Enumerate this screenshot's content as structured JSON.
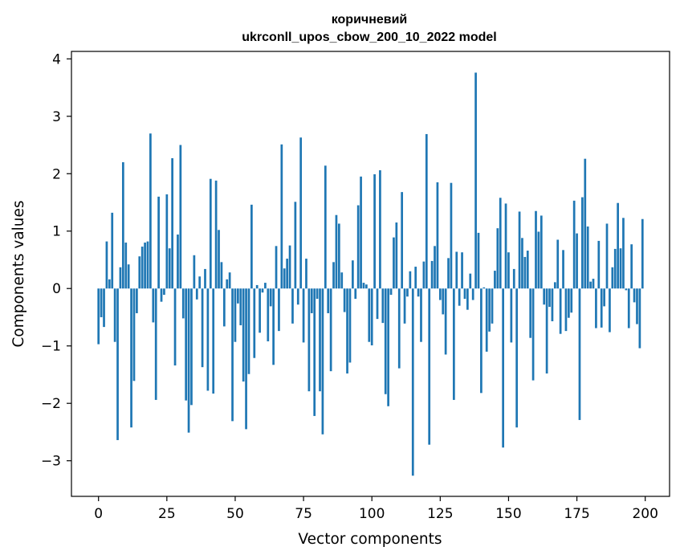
{
  "chart_data": {
    "type": "bar",
    "title_line1": "коричневий",
    "title_line2": "ukrconll_upos_cbow_200_10_2022 model",
    "xlabel": "Vector components",
    "ylabel": "Components values",
    "bar_color": "#1f77b4",
    "xlim": [
      -9.9,
      208.9
    ],
    "ylim": [
      -3.62,
      4.13
    ],
    "x_ticks": [
      0,
      25,
      50,
      75,
      100,
      125,
      150,
      175,
      200
    ],
    "y_ticks": [
      4,
      3,
      2,
      1,
      0,
      -1,
      -2,
      -3
    ],
    "y_tick_labels": [
      "4",
      "3",
      "2",
      "1",
      "0",
      "−1",
      "−2",
      "−3"
    ],
    "values": [
      -0.97,
      -0.5,
      -0.67,
      0.82,
      0.16,
      1.32,
      -0.93,
      -2.64,
      0.37,
      2.2,
      0.8,
      0.42,
      -2.42,
      -1.61,
      -0.43,
      0.56,
      0.73,
      0.8,
      0.82,
      2.7,
      -0.59,
      -1.94,
      1.6,
      -0.23,
      -0.11,
      1.64,
      0.7,
      2.27,
      -1.34,
      0.94,
      2.5,
      -0.52,
      -1.95,
      -2.51,
      -2.03,
      0.58,
      -0.19,
      0.21,
      -1.37,
      0.34,
      -1.78,
      1.91,
      -1.83,
      1.88,
      1.02,
      0.46,
      -0.66,
      0.16,
      0.28,
      -2.31,
      -0.93,
      -0.26,
      -0.64,
      -1.62,
      -2.45,
      -1.49,
      1.46,
      -1.21,
      0.06,
      -0.77,
      -0.07,
      0.1,
      -0.92,
      -0.31,
      -1.33,
      0.74,
      -0.74,
      2.51,
      0.35,
      0.52,
      0.75,
      -0.61,
      1.51,
      -0.28,
      2.63,
      -0.94,
      0.52,
      -1.79,
      -0.43,
      -2.22,
      -0.18,
      -1.79,
      -2.54,
      2.14,
      -0.43,
      -1.44,
      0.46,
      1.28,
      1.13,
      0.28,
      -0.41,
      -1.48,
      -1.29,
      0.49,
      -0.18,
      1.45,
      1.95,
      0.1,
      0.07,
      -0.93,
      -0.99,
      1.99,
      -0.53,
      2.06,
      -0.6,
      -1.84,
      -2.05,
      -0.11,
      0.89,
      1.15,
      -1.39,
      1.68,
      -0.61,
      -0.14,
      0.3,
      -3.26,
      0.38,
      -0.14,
      -0.93,
      0.47,
      2.69,
      -2.72,
      0.48,
      0.74,
      1.85,
      -0.2,
      -0.45,
      -1.15,
      0.53,
      1.84,
      -1.94,
      0.64,
      -0.3,
      0.63,
      -0.18,
      -0.37,
      0.26,
      -0.2,
      3.76,
      0.97,
      -1.82,
      0.02,
      -1.1,
      -0.75,
      -0.61,
      0.31,
      1.05,
      1.58,
      -2.77,
      1.48,
      0.63,
      -0.94,
      0.34,
      -2.42,
      1.34,
      0.88,
      0.55,
      0.66,
      -0.86,
      -1.6,
      1.35,
      0.99,
      1.27,
      -0.28,
      -1.48,
      -0.32,
      -0.57,
      0.11,
      0.85,
      -0.79,
      0.67,
      -0.74,
      -0.51,
      -0.42,
      1.53,
      0.96,
      -2.29,
      1.59,
      2.26,
      1.08,
      0.12,
      0.17,
      -0.69,
      0.83,
      -0.68,
      -0.31,
      1.13,
      -0.76,
      0.37,
      0.69,
      1.49,
      0.7,
      1.23,
      -0.03,
      -0.69,
      0.77,
      -0.24,
      -0.62,
      -1.04,
      1.21
    ]
  }
}
